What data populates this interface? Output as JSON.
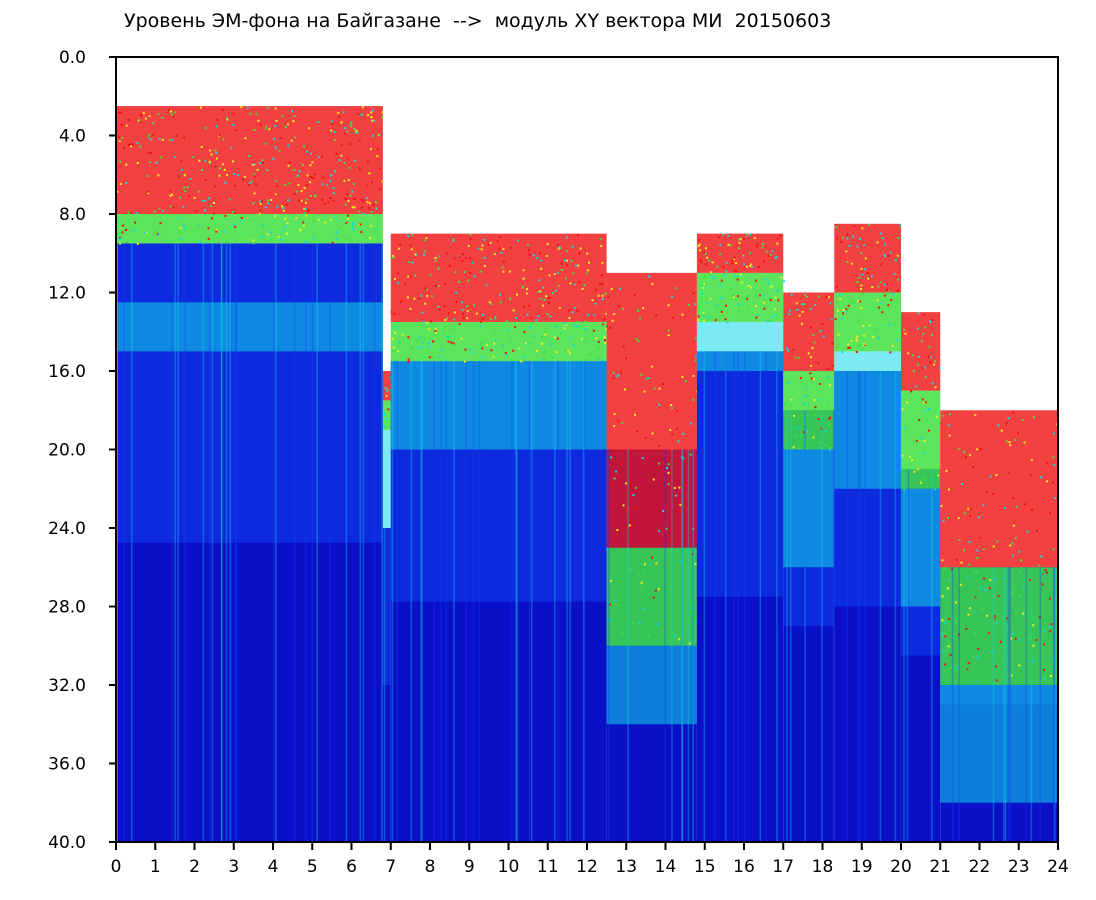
{
  "chart_data": {
    "type": "heatmap",
    "title": "Уровень ЭМ-фона на Байгазане  -->  модуль XY вектора МИ  20150603",
    "xlabel": "",
    "ylabel": "",
    "xlim": [
      0,
      24
    ],
    "ylim": [
      0,
      40
    ],
    "y_inverted": true,
    "grid": false,
    "x_ticks": [
      "0",
      "1",
      "2",
      "3",
      "4",
      "5",
      "6",
      "7",
      "8",
      "9",
      "10",
      "11",
      "12",
      "13",
      "14",
      "15",
      "16",
      "17",
      "18",
      "19",
      "20",
      "21",
      "22",
      "23",
      "24"
    ],
    "y_ticks": [
      "0.0",
      "4.0",
      "8.0",
      "12.0",
      "16.0",
      "20.0",
      "24.0",
      "28.0",
      "32.0",
      "36.0",
      "40.0"
    ],
    "colors": {
      "background_high": "#ffffff",
      "deep": "#0a10c8",
      "blue": "#1240f0",
      "cyan": "#10d8e8",
      "green": "#40e040",
      "yellow": "#f0f020",
      "red": "#f01010"
    },
    "segments": [
      {
        "x": [
          0.0,
          6.8
        ],
        "upper_edge": 2.5,
        "red_band": [
          2.5,
          8.0
        ],
        "green_band": [
          8.0,
          9.5
        ],
        "cyan_band": [
          12.5,
          15.0
        ],
        "blue_from": 9.5
      },
      {
        "x": [
          6.8,
          7.0
        ],
        "upper_edge": 16.0,
        "red_band": [
          16.0,
          17.5
        ],
        "green_band": [
          17.5,
          19.0
        ],
        "cyan_band": [
          19.0,
          24.0
        ],
        "blue_from": 24.0
      },
      {
        "x": [
          7.0,
          12.5
        ],
        "upper_edge": 9.0,
        "red_band": [
          9.0,
          13.5
        ],
        "green_band": [
          13.5,
          15.5
        ],
        "cyan_band": [
          15.5,
          20.0
        ],
        "blue_from": 15.5
      },
      {
        "x": [
          12.5,
          14.8
        ],
        "upper_edge": 11.0,
        "red_band": [
          11.0,
          25.0
        ],
        "green_band": [
          25.0,
          30.0
        ],
        "cyan_band": [
          30.0,
          34.0
        ],
        "blue_from": 20.0
      },
      {
        "x": [
          14.8,
          17.0
        ],
        "upper_edge": 9.0,
        "red_band": [
          9.0,
          11.0
        ],
        "green_band": [
          11.0,
          13.5
        ],
        "cyan_band": [
          13.5,
          16.0
        ],
        "blue_from": 15.0
      },
      {
        "x": [
          17.0,
          18.3
        ],
        "upper_edge": 12.0,
        "red_band": [
          12.0,
          16.0
        ],
        "green_band": [
          16.0,
          20.0
        ],
        "cyan_band": [
          20.0,
          26.0
        ],
        "blue_from": 18.0
      },
      {
        "x": [
          18.3,
          20.0
        ],
        "upper_edge": 8.5,
        "red_band": [
          8.5,
          12.0
        ],
        "green_band": [
          12.0,
          15.0
        ],
        "cyan_band": [
          15.0,
          22.0
        ],
        "blue_from": 16.0
      },
      {
        "x": [
          20.0,
          21.0
        ],
        "upper_edge": 13.0,
        "red_band": [
          13.0,
          17.0
        ],
        "green_band": [
          17.0,
          22.0
        ],
        "cyan_band": [
          22.0,
          28.0
        ],
        "blue_from": 21.0
      },
      {
        "x": [
          21.0,
          24.0
        ],
        "upper_edge": 18.0,
        "red_band": [
          18.0,
          26.0
        ],
        "green_band": [
          26.0,
          32.0
        ],
        "cyan_band": [
          32.0,
          38.0
        ],
        "blue_from": 26.0
      }
    ]
  }
}
